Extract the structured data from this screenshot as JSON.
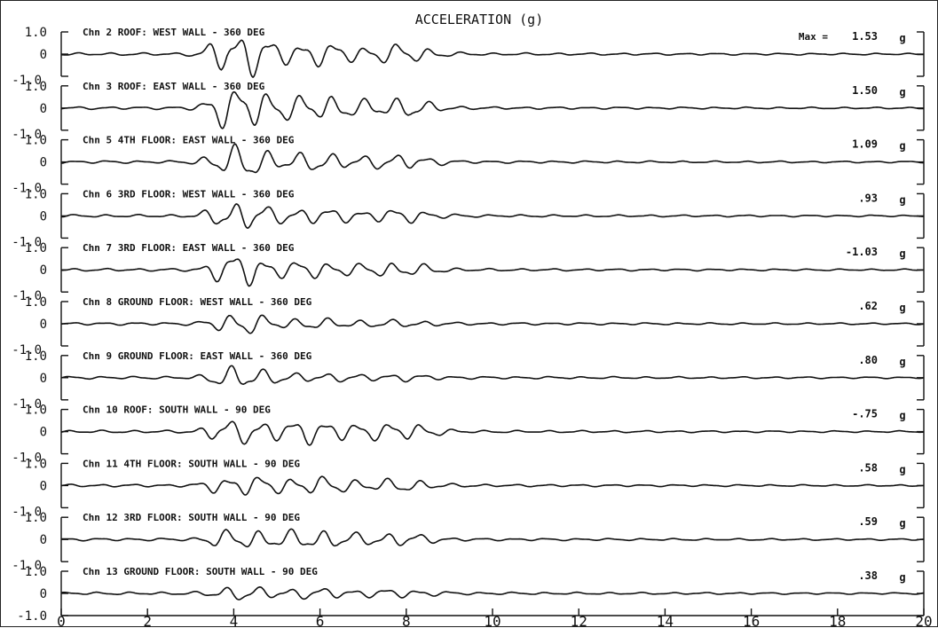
{
  "chart_data": {
    "type": "line",
    "title": "ACCELERATION (g)",
    "max_prefix": "Max =",
    "unit": "g",
    "x_ticks": [
      0,
      2,
      4,
      6,
      8,
      10,
      12,
      14,
      16,
      18,
      20
    ],
    "xlim": [
      0,
      20
    ],
    "y_tick_labels": [
      "1.0",
      "0",
      "-1.0"
    ],
    "ylim": [
      -1.0,
      1.0
    ],
    "series": [
      {
        "name": "Chn 2  ROOF: WEST WALL - 360 DEG",
        "max": "1.53",
        "shape": [
          0.32,
          0.97,
          0.55,
          0.4
        ]
      },
      {
        "name": "Chn 3  ROOF: EAST WALL - 360 DEG",
        "max": "1.50",
        "shape": [
          0.32,
          0.96,
          0.62,
          0.42
        ]
      },
      {
        "name": "Chn 5  4TH FLOOR: EAST WALL - 360 DEG",
        "max": "1.09",
        "shape": [
          0.25,
          0.72,
          0.42,
          0.3
        ]
      },
      {
        "name": "Chn 6  3RD FLOOR: WEST WALL - 360 DEG",
        "max": ".93",
        "shape": [
          0.2,
          0.6,
          0.35,
          0.28
        ]
      },
      {
        "name": "Chn 7  3RD FLOOR: EAST WALL - 360 DEG",
        "max": "-1.03",
        "shape": [
          0.2,
          0.7,
          0.38,
          0.3
        ]
      },
      {
        "name": "Chn 8  GROUND FLOOR: WEST WALL - 360 DEG",
        "max": ".62",
        "shape": [
          0.12,
          0.45,
          0.22,
          0.12
        ]
      },
      {
        "name": "Chn 9  GROUND FLOOR: EAST WALL - 360 DEG",
        "max": ".80",
        "shape": [
          0.12,
          0.55,
          0.18,
          0.12
        ]
      },
      {
        "name": "Chn 10  ROOF: SOUTH WALL - 90 DEG",
        "max": "-.75",
        "shape": [
          0.28,
          0.42,
          0.55,
          0.38
        ]
      },
      {
        "name": "Chn 11  4TH FLOOR: SOUTH WALL - 90 DEG",
        "max": ".58",
        "shape": [
          0.18,
          0.35,
          0.4,
          0.25
        ]
      },
      {
        "name": "Chn 12  3RD FLOOR: SOUTH WALL - 90 DEG",
        "max": ".59",
        "shape": [
          0.18,
          0.35,
          0.45,
          0.25
        ]
      },
      {
        "name": "Chn 13  GROUND FLOOR: SOUTH WALL - 90 DEG",
        "max": ".38",
        "shape": [
          0.1,
          0.25,
          0.22,
          0.15
        ]
      }
    ]
  }
}
